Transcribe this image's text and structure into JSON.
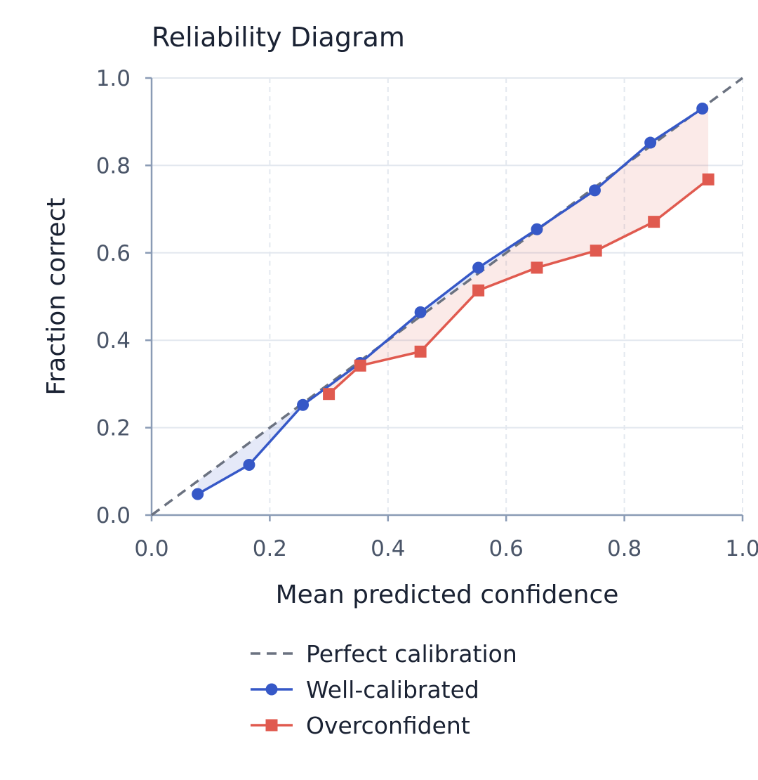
{
  "chart_data": {
    "type": "line",
    "title": "Reliability Diagram",
    "xlabel": "Mean predicted confidence",
    "ylabel": "Fraction correct",
    "xlim": [
      0,
      1
    ],
    "ylim": [
      0,
      1
    ],
    "xticks": [
      "0.0",
      "0.2",
      "0.4",
      "0.6",
      "0.8",
      "1.0"
    ],
    "yticks": [
      "0.0",
      "0.2",
      "0.4",
      "0.6",
      "0.8",
      "1.0"
    ],
    "grid": true,
    "legend_position": "bottom",
    "reference_line": {
      "name": "Perfect calibration",
      "x": [
        0,
        1
      ],
      "y": [
        0,
        1
      ],
      "style": "dashed",
      "color": "#6b7280"
    },
    "series": [
      {
        "name": "Well-calibrated",
        "marker": "circle",
        "color": "#3658c7",
        "fill_color": "#3658c7",
        "x": [
          0.078,
          0.165,
          0.256,
          0.353,
          0.455,
          0.553,
          0.652,
          0.75,
          0.844,
          0.932
        ],
        "y": [
          0.048,
          0.115,
          0.252,
          0.348,
          0.464,
          0.566,
          0.654,
          0.743,
          0.852,
          0.93
        ]
      },
      {
        "name": "Overconfident",
        "marker": "square",
        "color": "#e05a4f",
        "fill_color": "#e05a4f",
        "x": [
          0.3,
          0.353,
          0.455,
          0.553,
          0.652,
          0.752,
          0.85,
          0.942
        ],
        "y": [
          0.277,
          0.342,
          0.374,
          0.514,
          0.566,
          0.605,
          0.671,
          0.768
        ]
      }
    ]
  }
}
